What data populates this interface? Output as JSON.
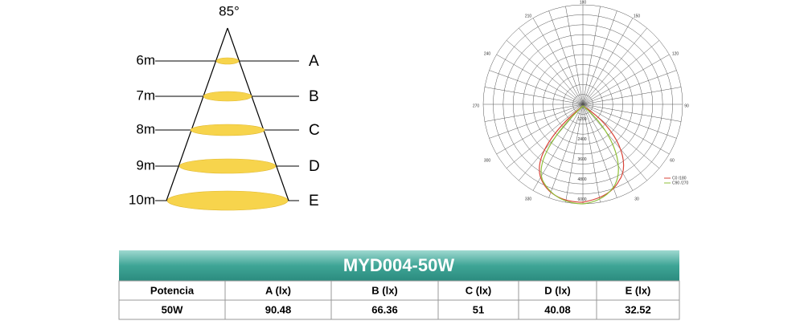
{
  "cone": {
    "angle": "85°",
    "distances": [
      "6m",
      "7m",
      "8m",
      "9m",
      "10m"
    ],
    "labels": [
      "A",
      "B",
      "C",
      "D",
      "E"
    ]
  },
  "polar": {
    "angle_labels": [
      "180",
      "210",
      "150",
      "240",
      "120",
      "270",
      "90",
      "300",
      "60",
      "330",
      "30"
    ],
    "radial_labels": [
      "1200",
      "2400",
      "3600",
      "4800",
      "6000"
    ],
    "legend": [
      "C0 /180",
      "C90 /270"
    ]
  },
  "table": {
    "title": "MYD004-50W",
    "headers": [
      "Potencia",
      "A (lx)",
      "B (lx)",
      "C (lx)",
      "D (lx)",
      "E (lx)"
    ],
    "rows": [
      [
        "50W",
        "90.48",
        "66.36",
        "51",
        "40.08",
        "32.52"
      ]
    ]
  }
}
